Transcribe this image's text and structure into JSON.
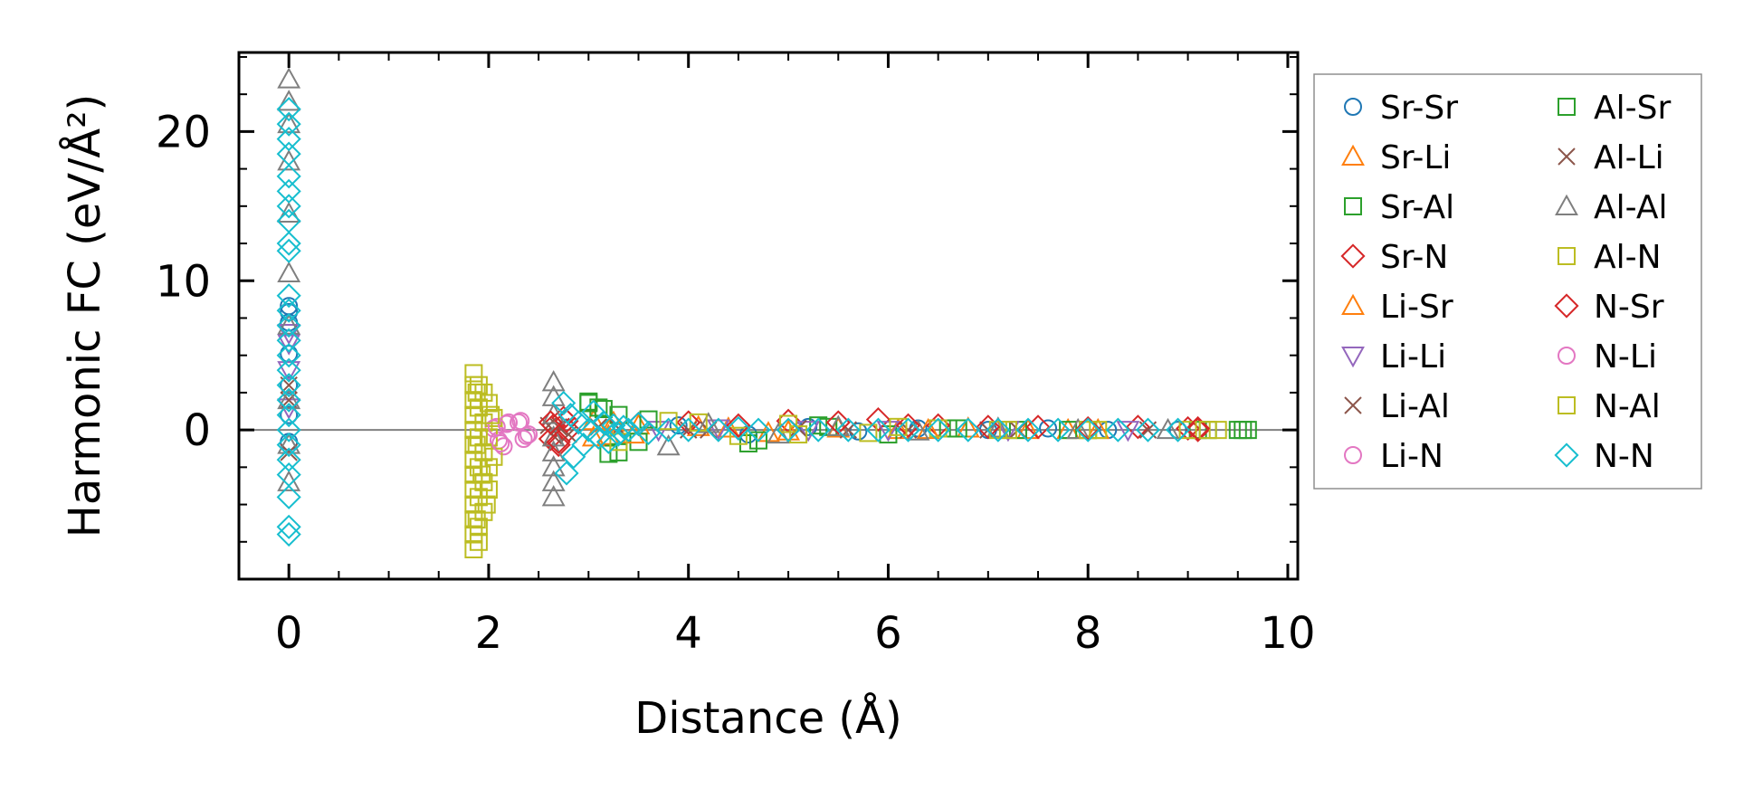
{
  "chart_data": {
    "type": "scatter",
    "xlabel": "Distance (Å)",
    "ylabel": "Harmonic FC (eV/Å²)",
    "xlim": [
      -0.5,
      10.1
    ],
    "ylim": [
      -10.0,
      25.3
    ],
    "x_ticks": [
      0,
      2,
      4,
      6,
      8,
      10
    ],
    "y_ticks": [
      0,
      10,
      20
    ],
    "x_tick_labels": [
      "0",
      "2",
      "4",
      "6",
      "8",
      "10"
    ],
    "y_tick_labels": [
      "0",
      "10",
      "20"
    ],
    "zero_line": 0,
    "legend_position": "outside-right",
    "legend_columns": 2,
    "series": [
      {
        "name": "Sr-Sr",
        "marker": "circle",
        "color": "#1f77b4",
        "points": [
          [
            0,
            8.3
          ],
          [
            0,
            7.9
          ],
          [
            0,
            7.2
          ],
          [
            0,
            5.1
          ],
          [
            0,
            3.0
          ],
          [
            0,
            1.0
          ],
          [
            0,
            -0.8
          ],
          [
            3.9,
            0.3
          ],
          [
            4.6,
            -0.3
          ],
          [
            5.2,
            0.2
          ],
          [
            5.7,
            -0.1
          ],
          [
            6.3,
            0.1
          ],
          [
            7.0,
            0.0
          ],
          [
            7.6,
            0.1
          ],
          [
            8.2,
            0.0
          ],
          [
            8.9,
            0.0
          ]
        ]
      },
      {
        "name": "Sr-Li",
        "marker": "triangle-up",
        "color": "#ff7f0e",
        "points": [
          [
            3.05,
            0.6
          ],
          [
            3.2,
            -0.4
          ],
          [
            3.5,
            0.3
          ],
          [
            4.1,
            0.2
          ],
          [
            4.8,
            -0.2
          ],
          [
            5.5,
            0.1
          ],
          [
            6.1,
            0.0
          ],
          [
            6.8,
            0.1
          ],
          [
            7.4,
            0.0
          ],
          [
            8.1,
            0.0
          ]
        ]
      },
      {
        "name": "Sr-Al",
        "marker": "square",
        "color": "#2ca02c",
        "points": [
          [
            3.0,
            1.8
          ],
          [
            3.1,
            1.5
          ],
          [
            3.2,
            -1.6
          ],
          [
            3.3,
            1.0
          ],
          [
            3.5,
            -0.8
          ],
          [
            4.6,
            -0.9
          ],
          [
            5.3,
            0.3
          ],
          [
            6.0,
            -0.3
          ],
          [
            6.7,
            0.1
          ],
          [
            7.3,
            0.0
          ],
          [
            8.0,
            0.0
          ],
          [
            9.1,
            0.0
          ],
          [
            9.5,
            0.0
          ],
          [
            9.6,
            0.0
          ]
        ]
      },
      {
        "name": "Sr-N",
        "marker": "diamond",
        "color": "#d62728",
        "points": [
          [
            2.62,
            -0.6
          ],
          [
            2.65,
            0.3
          ],
          [
            2.7,
            -1.0
          ],
          [
            2.75,
            0.8
          ],
          [
            2.8,
            0.0
          ],
          [
            4.0,
            0.5
          ],
          [
            5.0,
            0.6
          ],
          [
            5.9,
            0.7
          ],
          [
            6.5,
            0.3
          ],
          [
            7.5,
            0.2
          ],
          [
            8.5,
            0.2
          ],
          [
            9.0,
            0.1
          ],
          [
            9.1,
            0.0
          ]
        ]
      },
      {
        "name": "Li-Sr",
        "marker": "triangle-up",
        "color": "#ff7f0e",
        "points": [
          [
            3.05,
            -0.5
          ],
          [
            3.25,
            0.5
          ],
          [
            3.45,
            -0.3
          ],
          [
            4.4,
            0.1
          ],
          [
            5.0,
            -0.1
          ],
          [
            6.4,
            0.0
          ],
          [
            7.8,
            0.0
          ]
        ]
      },
      {
        "name": "Li-Li",
        "marker": "triangle-down",
        "color": "#9467bd",
        "points": [
          [
            0,
            6.5
          ],
          [
            0,
            5.8
          ],
          [
            0,
            4.0
          ],
          [
            0,
            1.5
          ],
          [
            3.7,
            0.0
          ],
          [
            4.3,
            0.1
          ],
          [
            5.2,
            0.0
          ],
          [
            6.0,
            0.0
          ],
          [
            7.2,
            0.0
          ],
          [
            8.4,
            0.0
          ]
        ]
      },
      {
        "name": "Li-Al",
        "marker": "x",
        "color": "#8c564b",
        "points": [
          [
            0,
            3.0
          ],
          [
            0,
            -1.5
          ],
          [
            2.6,
            0.3
          ],
          [
            2.65,
            -0.4
          ],
          [
            3.1,
            0.2
          ],
          [
            4.0,
            0.0
          ],
          [
            5.1,
            0.1
          ],
          [
            6.2,
            0.0
          ],
          [
            7.3,
            0.0
          ],
          [
            8.6,
            0.0
          ]
        ]
      },
      {
        "name": "Li-N",
        "marker": "circle",
        "color": "#e377c2",
        "points": [
          [
            2.05,
            0.1
          ],
          [
            2.1,
            -0.7
          ],
          [
            2.15,
            -1.1
          ],
          [
            2.2,
            0.5
          ],
          [
            2.32,
            0.6
          ],
          [
            2.35,
            -0.6
          ],
          [
            2.4,
            -0.3
          ]
        ]
      },
      {
        "name": "Al-Sr",
        "marker": "square",
        "color": "#2ca02c",
        "points": [
          [
            3.0,
            1.9
          ],
          [
            3.15,
            1.4
          ],
          [
            3.3,
            -1.5
          ],
          [
            3.6,
            0.7
          ],
          [
            4.7,
            -0.7
          ],
          [
            5.4,
            0.2
          ],
          [
            6.6,
            0.1
          ],
          [
            7.8,
            0.0
          ],
          [
            9.2,
            0.0
          ],
          [
            9.55,
            0.0
          ]
        ]
      },
      {
        "name": "Al-Li",
        "marker": "x",
        "color": "#8c564b",
        "points": [
          [
            0,
            2.0
          ],
          [
            2.7,
            0.2
          ],
          [
            2.8,
            -0.3
          ],
          [
            3.3,
            0.1
          ],
          [
            4.2,
            0.0
          ],
          [
            5.6,
            0.0
          ],
          [
            7.0,
            0.0
          ]
        ]
      },
      {
        "name": "Al-Al",
        "marker": "triangle-up",
        "color": "#7f7f7f",
        "points": [
          [
            0,
            23.5
          ],
          [
            0,
            22.0
          ],
          [
            0,
            20.5
          ],
          [
            0,
            18.0
          ],
          [
            0,
            14.5
          ],
          [
            0,
            10.5
          ],
          [
            0,
            7.0
          ],
          [
            0,
            2.0
          ],
          [
            0,
            -1.0
          ],
          [
            0,
            -3.5
          ],
          [
            2.65,
            3.2
          ],
          [
            2.65,
            2.2
          ],
          [
            2.65,
            1.0
          ],
          [
            2.65,
            -0.5
          ],
          [
            2.65,
            -1.5
          ],
          [
            2.65,
            -2.5
          ],
          [
            2.65,
            -3.5
          ],
          [
            2.65,
            -4.5
          ],
          [
            3.8,
            -1.1
          ],
          [
            4.2,
            0.4
          ],
          [
            4.9,
            -0.3
          ],
          [
            5.5,
            0.2
          ],
          [
            6.3,
            -0.1
          ],
          [
            7.1,
            0.1
          ],
          [
            7.9,
            0.0
          ],
          [
            8.8,
            0.0
          ]
        ]
      },
      {
        "name": "Al-N",
        "marker": "square",
        "color": "#bcbd22",
        "points": [
          [
            1.85,
            3.8
          ],
          [
            1.85,
            3.0
          ],
          [
            1.85,
            2.0
          ],
          [
            1.85,
            1.0
          ],
          [
            1.85,
            0.0
          ],
          [
            1.85,
            -1.0
          ],
          [
            1.85,
            -2.0
          ],
          [
            1.85,
            -3.0
          ],
          [
            1.85,
            -4.0
          ],
          [
            1.85,
            -5.0
          ],
          [
            1.85,
            -6.0
          ],
          [
            1.85,
            -7.0
          ],
          [
            1.85,
            -8.0
          ],
          [
            1.9,
            3.0
          ],
          [
            1.9,
            1.5
          ],
          [
            1.9,
            -0.5
          ],
          [
            1.9,
            -2.5
          ],
          [
            1.9,
            -4.5
          ],
          [
            1.9,
            -6.5
          ],
          [
            1.9,
            -7.5
          ],
          [
            1.95,
            2.5
          ],
          [
            1.95,
            0.5
          ],
          [
            1.95,
            -1.5
          ],
          [
            1.95,
            -3.5
          ],
          [
            1.95,
            -5.5
          ],
          [
            2.0,
            1.8
          ],
          [
            2.0,
            -0.5
          ],
          [
            2.0,
            -2.5
          ],
          [
            2.0,
            -4.0
          ],
          [
            2.05,
            0.8
          ],
          [
            2.05,
            -1.8
          ],
          [
            3.3,
            -0.8
          ],
          [
            3.8,
            0.6
          ],
          [
            4.5,
            -0.4
          ],
          [
            5.0,
            0.4
          ],
          [
            5.8,
            -0.2
          ],
          [
            6.5,
            0.1
          ],
          [
            7.2,
            0.0
          ],
          [
            8.0,
            0.0
          ],
          [
            9.0,
            0.0
          ],
          [
            9.3,
            0.0
          ]
        ]
      },
      {
        "name": "N-Sr",
        "marker": "diamond",
        "color": "#d62728",
        "points": [
          [
            2.62,
            0.5
          ],
          [
            2.7,
            -0.8
          ],
          [
            2.78,
            0.6
          ],
          [
            3.5,
            0.4
          ],
          [
            4.5,
            0.3
          ],
          [
            5.5,
            0.5
          ],
          [
            6.2,
            0.3
          ],
          [
            7.0,
            0.2
          ],
          [
            8.0,
            0.1
          ],
          [
            9.1,
            0.1
          ]
        ]
      },
      {
        "name": "N-Li",
        "marker": "circle",
        "color": "#e377c2",
        "points": [
          [
            2.08,
            0.2
          ],
          [
            2.12,
            -0.9
          ],
          [
            2.18,
            0.4
          ],
          [
            2.3,
            0.5
          ],
          [
            2.38,
            -0.4
          ]
        ]
      },
      {
        "name": "N-Al",
        "marker": "square",
        "color": "#bcbd22",
        "points": [
          [
            1.88,
            2.5
          ],
          [
            1.88,
            -1.0
          ],
          [
            1.93,
            -3.0
          ],
          [
            1.98,
            -5.0
          ],
          [
            1.88,
            -6.0
          ],
          [
            2.02,
            1.0
          ],
          [
            4.1,
            0.5
          ],
          [
            5.1,
            -0.3
          ],
          [
            6.1,
            0.2
          ],
          [
            7.1,
            0.0
          ],
          [
            8.1,
            0.0
          ],
          [
            9.2,
            0.0
          ]
        ]
      },
      {
        "name": "N-N",
        "marker": "diamond",
        "color": "#17becf",
        "points": [
          [
            0,
            21.5
          ],
          [
            0,
            20.5
          ],
          [
            0,
            19.5
          ],
          [
            0,
            18.5
          ],
          [
            0,
            17.0
          ],
          [
            0,
            16.0
          ],
          [
            0,
            15.0
          ],
          [
            0,
            14.0
          ],
          [
            0,
            12.5
          ],
          [
            0,
            12.0
          ],
          [
            0,
            9.0
          ],
          [
            0,
            8.0
          ],
          [
            0,
            7.0
          ],
          [
            0,
            6.0
          ],
          [
            0,
            5.0
          ],
          [
            0,
            4.0
          ],
          [
            0,
            3.0
          ],
          [
            0,
            2.0
          ],
          [
            0,
            1.0
          ],
          [
            0,
            0.0
          ],
          [
            0,
            -1.0
          ],
          [
            0,
            -2.0
          ],
          [
            0,
            -3.0
          ],
          [
            0,
            -4.5
          ],
          [
            0,
            -6.5
          ],
          [
            0,
            -7.0
          ],
          [
            2.75,
            1.8
          ],
          [
            2.78,
            -2.9
          ],
          [
            2.82,
            1.0
          ],
          [
            2.85,
            -1.8
          ],
          [
            2.9,
            0.5
          ],
          [
            2.95,
            -1.0
          ],
          [
            3.0,
            0.0
          ],
          [
            3.05,
            1.2
          ],
          [
            3.1,
            -0.5
          ],
          [
            3.15,
            0.5
          ],
          [
            3.2,
            -0.8
          ],
          [
            3.25,
            0.3
          ],
          [
            3.3,
            -0.3
          ],
          [
            3.35,
            0.2
          ],
          [
            3.4,
            0.0
          ],
          [
            3.5,
            0.4
          ],
          [
            3.6,
            -0.2
          ],
          [
            3.8,
            0.0
          ],
          [
            4.0,
            0.0
          ],
          [
            4.3,
            0.0
          ],
          [
            4.5,
            0.1
          ],
          [
            4.7,
            0.0
          ],
          [
            5.0,
            0.0
          ],
          [
            5.3,
            0.0
          ],
          [
            5.6,
            0.0
          ],
          [
            5.9,
            0.0
          ],
          [
            6.2,
            0.0
          ],
          [
            6.5,
            0.0
          ],
          [
            6.8,
            0.0
          ],
          [
            7.1,
            0.0
          ],
          [
            7.4,
            0.0
          ],
          [
            7.7,
            0.0
          ],
          [
            8.0,
            0.0
          ],
          [
            8.3,
            0.0
          ],
          [
            8.6,
            0.0
          ],
          [
            8.9,
            0.0
          ]
        ]
      }
    ]
  }
}
